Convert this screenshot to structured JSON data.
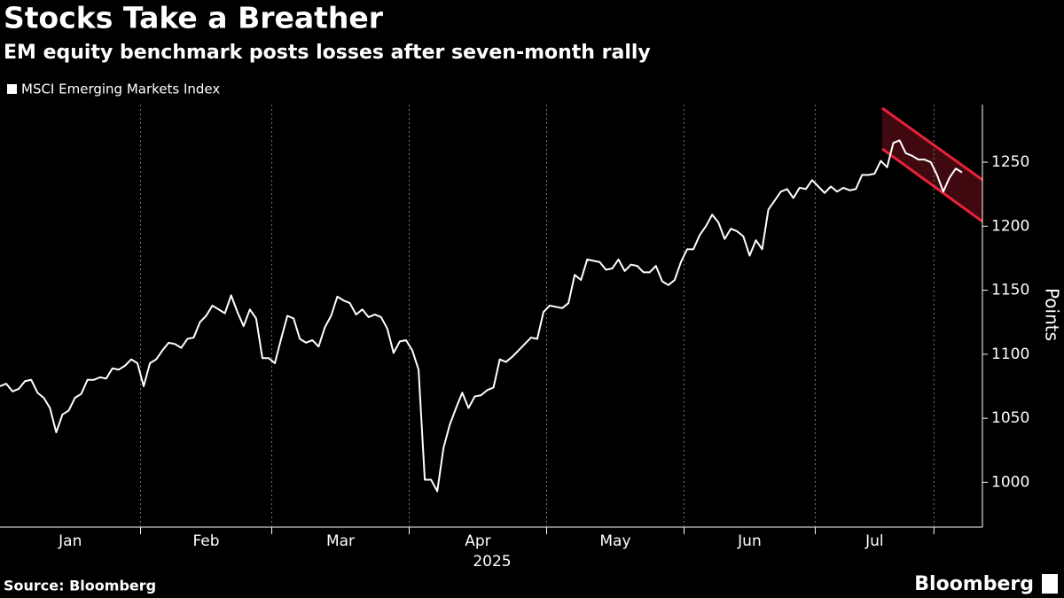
{
  "chart_data": {
    "type": "line",
    "title": "Stocks Take a Breather",
    "subtitle": "EM equity benchmark posts losses after seven-month rally",
    "y_label": "Points",
    "x_label": "2025",
    "source": "Source: Bloomberg",
    "logo": "Bloomberg",
    "ylim": [
      965,
      1295
    ],
    "yticks": [
      1000,
      1050,
      1100,
      1150,
      1200,
      1250
    ],
    "grid": true,
    "categories": [
      "Jan",
      "Jan",
      "Jan",
      "Jan",
      "Jan",
      "Jan",
      "Jan",
      "Jan",
      "Jan",
      "Jan",
      "Jan",
      "Jan",
      "Jan",
      "Jan",
      "Jan",
      "Jan",
      "Jan",
      "Jan",
      "Jan",
      "Jan",
      "Jan",
      "Jan",
      "Jan",
      "Feb",
      "Feb",
      "Feb",
      "Feb",
      "Feb",
      "Feb",
      "Feb",
      "Feb",
      "Feb",
      "Feb",
      "Feb",
      "Feb",
      "Feb",
      "Feb",
      "Feb",
      "Feb",
      "Feb",
      "Feb",
      "Feb",
      "Feb",
      "Feb",
      "Mar",
      "Mar",
      "Mar",
      "Mar",
      "Mar",
      "Mar",
      "Mar",
      "Mar",
      "Mar",
      "Mar",
      "Mar",
      "Mar",
      "Mar",
      "Mar",
      "Mar",
      "Mar",
      "Mar",
      "Mar",
      "Mar",
      "Mar",
      "Mar",
      "Mar",
      "Apr",
      "Apr",
      "Apr",
      "Apr",
      "Apr",
      "Apr",
      "Apr",
      "Apr",
      "Apr",
      "Apr",
      "Apr",
      "Apr",
      "Apr",
      "Apr",
      "Apr",
      "Apr",
      "Apr",
      "Apr",
      "Apr",
      "Apr",
      "Apr",
      "Apr",
      "May",
      "May",
      "May",
      "May",
      "May",
      "May",
      "May",
      "May",
      "May",
      "May",
      "May",
      "May",
      "May",
      "May",
      "May",
      "May",
      "May",
      "May",
      "May",
      "May",
      "May",
      "May",
      "Jun",
      "Jun",
      "Jun",
      "Jun",
      "Jun",
      "Jun",
      "Jun",
      "Jun",
      "Jun",
      "Jun",
      "Jun",
      "Jun",
      "Jun",
      "Jun",
      "Jun",
      "Jun",
      "Jun",
      "Jun",
      "Jun",
      "Jun",
      "Jun",
      "Jul",
      "Jul",
      "Jul",
      "Jul",
      "Jul",
      "Jul",
      "Jul",
      "Jul",
      "Jul",
      "Jul",
      "Jul",
      "Jul",
      "Jul",
      "Jul",
      "Jul",
      "Jul",
      "Jul",
      "Jul",
      "Jul",
      null,
      null,
      null,
      null,
      null
    ],
    "series": [
      {
        "name": "MSCI Emerging Markets Index",
        "color": "#ffffff",
        "values": [
          1075,
          1077,
          1071,
          1073,
          1079,
          1080,
          1070,
          1066,
          1058,
          1039,
          1053,
          1056,
          1066,
          1069,
          1080,
          1080,
          1082,
          1081,
          1089,
          1088,
          1091,
          1096,
          1093,
          1075,
          1093,
          1096,
          1103,
          1109,
          1108,
          1105,
          1112,
          1113,
          1125,
          1130,
          1138,
          1135,
          1132,
          1146,
          1133,
          1122,
          1135,
          1128,
          1097,
          1097,
          1093,
          1112,
          1130,
          1128,
          1112,
          1109,
          1111,
          1106,
          1121,
          1130,
          1145,
          1142,
          1140,
          1131,
          1135,
          1129,
          1131,
          1129,
          1120,
          1101,
          1110,
          1111,
          1103,
          1088,
          1002,
          1002,
          993,
          1027,
          1045,
          1058,
          1070,
          1058,
          1067,
          1068,
          1072,
          1074,
          1096,
          1094,
          1098,
          1103,
          1108,
          1113,
          1112,
          1133,
          1138,
          1137,
          1136,
          1140,
          1162,
          1158,
          1174,
          1173,
          1172,
          1166,
          1167,
          1174,
          1165,
          1170,
          1169,
          1164,
          1164,
          1169,
          1157,
          1154,
          1158,
          1172,
          1182,
          1182,
          1193,
          1200,
          1209,
          1203,
          1190,
          1198,
          1196,
          1192,
          1177,
          1189,
          1182,
          1213,
          1220,
          1227,
          1229,
          1222,
          1230,
          1229,
          1236,
          1231,
          1226,
          1231,
          1227,
          1230,
          1228,
          1229,
          1240,
          1240,
          1241,
          1251,
          1246,
          1265,
          1267,
          1257,
          1255,
          1252,
          1252,
          1250,
          1240,
          1227,
          1238,
          1245,
          1242
        ]
      }
    ]
  }
}
